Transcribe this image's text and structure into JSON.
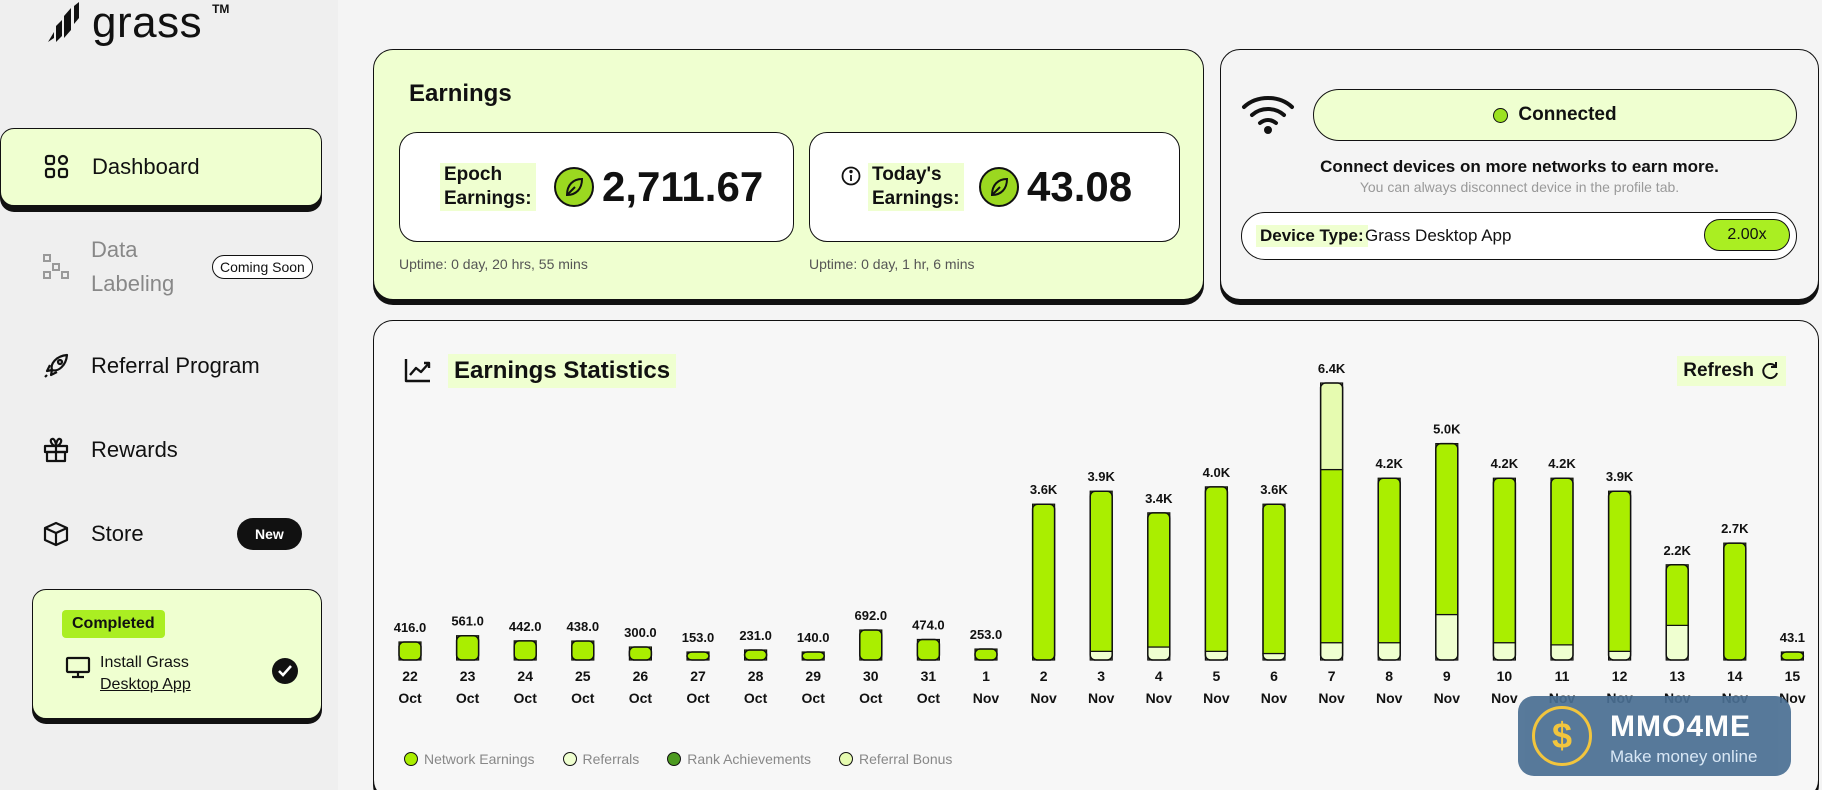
{
  "app": {
    "logo_text": "grass",
    "logo_tm": "TM"
  },
  "sidebar": {
    "items": [
      {
        "label": "Dashboard"
      },
      {
        "label_line1": "Data",
        "label_line2": "Labeling",
        "badge": "Coming Soon"
      },
      {
        "label": "Referral Program"
      },
      {
        "label": "Rewards"
      },
      {
        "label": "Store",
        "badge": "New"
      }
    ],
    "task": {
      "status": "Completed",
      "line1": "Install Grass",
      "link": "Desktop App"
    }
  },
  "earnings": {
    "title": "Earnings",
    "epoch_label_1": "Epoch",
    "epoch_label_2": "Earnings:",
    "epoch_value": "2,711.67",
    "epoch_uptime": "Uptime: 0 day, 20 hrs, 55 mins",
    "today_label_1": "Today's",
    "today_label_2": "Earnings:",
    "today_value": "43.08",
    "today_uptime": "Uptime: 0 day, 1 hr, 6 mins"
  },
  "connection": {
    "status": "Connected",
    "message": "Connect devices on more networks to earn more.",
    "sub_message": "You can always disconnect device in the profile tab.",
    "device_label": "Device Type:",
    "device_value": "Grass Desktop App",
    "multiplier": "2.00x"
  },
  "stats": {
    "title": "Earnings Statistics",
    "refresh_label": "Refresh"
  },
  "colors": {
    "network": "#aaee00",
    "referral": "#efffd0",
    "rank": "#4c9a20",
    "bonus": "#e6fbb0"
  },
  "chart_data": {
    "type": "bar",
    "categories": [
      [
        "22",
        "Oct"
      ],
      [
        "23",
        "Oct"
      ],
      [
        "24",
        "Oct"
      ],
      [
        "25",
        "Oct"
      ],
      [
        "26",
        "Oct"
      ],
      [
        "27",
        "Oct"
      ],
      [
        "28",
        "Oct"
      ],
      [
        "29",
        "Oct"
      ],
      [
        "30",
        "Oct"
      ],
      [
        "31",
        "Oct"
      ],
      [
        "1",
        "Nov"
      ],
      [
        "2",
        "Nov"
      ],
      [
        "3",
        "Nov"
      ],
      [
        "4",
        "Nov"
      ],
      [
        "5",
        "Nov"
      ],
      [
        "6",
        "Nov"
      ],
      [
        "7",
        "Nov"
      ],
      [
        "8",
        "Nov"
      ],
      [
        "9",
        "Nov"
      ],
      [
        "10",
        "Nov"
      ],
      [
        "11",
        "Nov"
      ],
      [
        "12",
        "Nov"
      ],
      [
        "13",
        "Nov"
      ],
      [
        "14",
        "Nov"
      ],
      [
        "15",
        "Nov"
      ]
    ],
    "value_labels": [
      "416.0",
      "561.0",
      "442.0",
      "438.0",
      "300.0",
      "153.0",
      "231.0",
      "140.0",
      "692.0",
      "474.0",
      "253.0",
      "3.6K",
      "3.9K",
      "3.4K",
      "4.0K",
      "3.6K",
      "6.4K",
      "4.2K",
      "5.0K",
      "4.2K",
      "4.2K",
      "3.9K",
      "2.2K",
      "2.7K",
      "43.1"
    ],
    "series": [
      {
        "name": "Network Earnings",
        "values": [
          416,
          561,
          442,
          438,
          300,
          153,
          231,
          140,
          692,
          474,
          253,
          3600,
          3700,
          3100,
          3800,
          3450,
          4000,
          3800,
          3950,
          3800,
          3850,
          3700,
          1400,
          2700,
          43
        ]
      },
      {
        "name": "Referrals",
        "values": [
          0,
          0,
          0,
          0,
          0,
          0,
          0,
          0,
          0,
          0,
          0,
          0,
          200,
          300,
          200,
          150,
          400,
          400,
          1050,
          400,
          350,
          200,
          800,
          0,
          0
        ]
      },
      {
        "name": "Rank Achievements",
        "values": [
          0,
          0,
          0,
          0,
          0,
          0,
          0,
          0,
          0,
          0,
          0,
          0,
          0,
          0,
          0,
          0,
          0,
          0,
          0,
          0,
          0,
          0,
          0,
          0,
          0
        ]
      },
      {
        "name": "Referral Bonus",
        "values": [
          0,
          0,
          0,
          0,
          0,
          0,
          0,
          0,
          0,
          0,
          0,
          0,
          0,
          0,
          0,
          0,
          2000,
          0,
          0,
          0,
          0,
          0,
          0,
          0,
          0
        ]
      }
    ],
    "ylim": [
      0,
      6400
    ],
    "legend_position": "bottom-left"
  },
  "watermark": {
    "title": "MMO4ME",
    "subtitle": "Make money online"
  }
}
